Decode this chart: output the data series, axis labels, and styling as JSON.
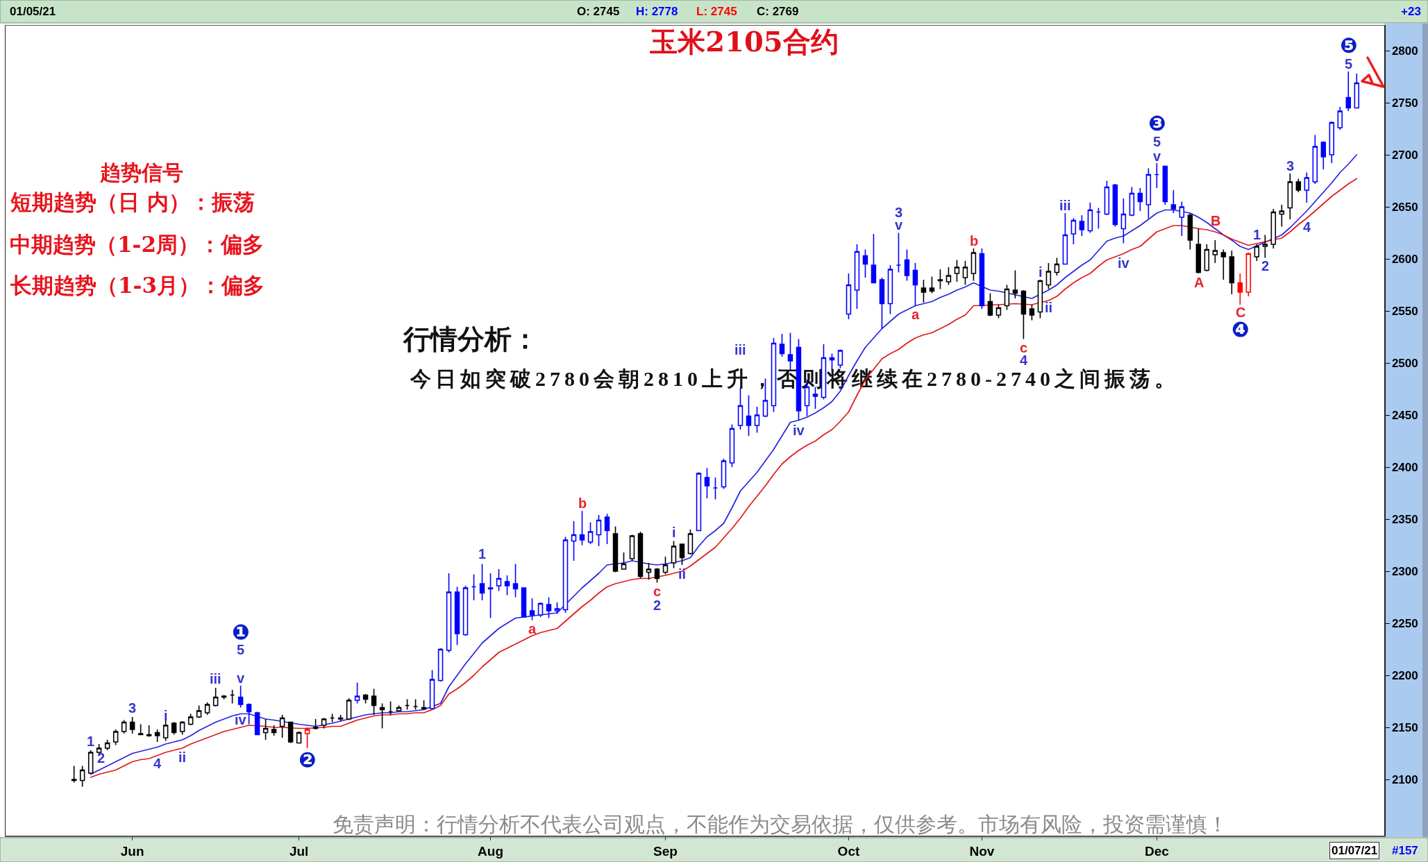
{
  "chart_data": {
    "type": "candlestick",
    "title": "玉米2105合约",
    "categories": [
      null,
      null,
      null,
      null,
      null,
      null,
      null,
      "Jun",
      null,
      null,
      null,
      null,
      null,
      null,
      null,
      null,
      null,
      null,
      null,
      null,
      null,
      null,
      null,
      null,
      null,
      null,
      null,
      "Jul",
      null,
      null,
      null,
      null,
      null,
      null,
      null,
      null,
      null,
      null,
      null,
      null,
      null,
      null,
      null,
      null,
      null,
      null,
      null,
      null,
      null,
      null,
      "Aug",
      null,
      null,
      null,
      null,
      null,
      null,
      null,
      null,
      null,
      null,
      null,
      null,
      null,
      null,
      null,
      null,
      null,
      null,
      null,
      null,
      "Sep",
      null,
      null,
      null,
      null,
      null,
      null,
      null,
      null,
      null,
      null,
      null,
      null,
      null,
      null,
      null,
      null,
      null,
      null,
      null,
      null,
      null,
      "Oct",
      null,
      null,
      null,
      null,
      null,
      null,
      null,
      null,
      null,
      null,
      null,
      null,
      null,
      null,
      null,
      "Nov",
      null,
      null,
      null,
      null,
      null,
      null,
      null,
      null,
      null,
      null,
      null,
      null,
      null,
      null,
      null,
      null,
      null,
      null,
      null,
      null,
      "Dec",
      null,
      null,
      null,
      null,
      null,
      null,
      null,
      null,
      null,
      null,
      null,
      null,
      null,
      null,
      null,
      null,
      null,
      null,
      null,
      null,
      null,
      null,
      null,
      null
    ],
    "ohlc": [
      [
        2100,
        2113,
        2097,
        2099
      ],
      [
        2099,
        2113,
        2093,
        2109
      ],
      [
        2106,
        2128,
        2105,
        2126
      ],
      [
        2126,
        2134,
        2123,
        2130
      ],
      [
        2130,
        2138,
        2128,
        2135
      ],
      [
        2136,
        2148,
        2133,
        2146
      ],
      [
        2146,
        2157,
        2144,
        2155
      ],
      [
        2155,
        2160,
        2144,
        2148
      ],
      [
        2144,
        2153,
        2143,
        2143
      ],
      [
        2143,
        2152,
        2141,
        2142
      ],
      [
        2145,
        2148,
        2136,
        2142
      ],
      [
        2140,
        2157,
        2137,
        2152
      ],
      [
        2154,
        2155,
        2143,
        2145
      ],
      [
        2146,
        2156,
        2143,
        2155
      ],
      [
        2153,
        2163,
        2152,
        2160
      ],
      [
        2160,
        2171,
        2159,
        2166
      ],
      [
        2164,
        2174,
        2162,
        2172
      ],
      [
        2171,
        2188,
        2170,
        2179
      ],
      [
        2179,
        2181,
        2177,
        2180
      ],
      [
        2181,
        2186,
        2173,
        2181
      ],
      [
        2179,
        2190,
        2169,
        2172
      ],
      [
        2172,
        2173,
        2153,
        2165
      ],
      [
        2164,
        2165,
        2143,
        2143
      ],
      [
        2145,
        2158,
        2138,
        2149
      ],
      [
        2148,
        2152,
        2142,
        2145
      ],
      [
        2151,
        2162,
        2140,
        2159
      ],
      [
        2155,
        2155,
        2135,
        2136
      ],
      [
        2135,
        2146,
        2135,
        2145
      ],
      [
        2144,
        2150,
        2130,
        2148
      ],
      [
        2150,
        2158,
        2148,
        2149
      ],
      [
        2152,
        2159,
        2149,
        2158
      ],
      [
        2159,
        2163,
        2155,
        2159
      ],
      [
        2159,
        2162,
        2156,
        2158
      ],
      [
        2158,
        2178,
        2157,
        2176
      ],
      [
        2176,
        2193,
        2173,
        2180
      ],
      [
        2181,
        2182,
        2173,
        2177
      ],
      [
        2180,
        2187,
        2162,
        2171
      ],
      [
        2169,
        2173,
        2149,
        2167
      ],
      [
        2165,
        2175,
        2162,
        2165
      ],
      [
        2166,
        2171,
        2165,
        2169
      ],
      [
        2171,
        2177,
        2167,
        2171
      ],
      [
        2170,
        2177,
        2167,
        2170
      ],
      [
        2169,
        2176,
        2167,
        2168
      ],
      [
        2168,
        2205,
        2168,
        2196
      ],
      [
        2195,
        2226,
        2194,
        2225
      ],
      [
        2224,
        2298,
        2222,
        2280
      ],
      [
        2280,
        2285,
        2229,
        2240
      ],
      [
        2239,
        2286,
        2238,
        2284
      ],
      [
        2285,
        2297,
        2272,
        2285
      ],
      [
        2288,
        2307,
        2272,
        2279
      ],
      [
        2283,
        2298,
        2255,
        2284
      ],
      [
        2286,
        2302,
        2281,
        2293
      ],
      [
        2290,
        2296,
        2277,
        2286
      ],
      [
        2288,
        2307,
        2275,
        2283
      ],
      [
        2284,
        2284,
        2256,
        2256
      ],
      [
        2262,
        2274,
        2253,
        2258
      ],
      [
        2258,
        2270,
        2256,
        2269
      ],
      [
        2268,
        2275,
        2255,
        2262
      ],
      [
        2262,
        2270,
        2259,
        2264
      ],
      [
        2263,
        2333,
        2260,
        2330
      ],
      [
        2329,
        2348,
        2310,
        2335
      ],
      [
        2335,
        2358,
        2325,
        2330
      ],
      [
        2328,
        2347,
        2326,
        2338
      ],
      [
        2335,
        2354,
        2324,
        2349
      ],
      [
        2352,
        2355,
        2326,
        2339
      ],
      [
        2336,
        2343,
        2299,
        2300
      ],
      [
        2302,
        2318,
        2302,
        2307
      ],
      [
        2312,
        2335,
        2310,
        2334
      ],
      [
        2336,
        2338,
        2293,
        2295
      ],
      [
        2299,
        2308,
        2292,
        2302
      ],
      [
        2302,
        2303,
        2289,
        2293
      ],
      [
        2299,
        2314,
        2297,
        2306
      ],
      [
        2308,
        2329,
        2303,
        2324
      ],
      [
        2326,
        2326,
        2306,
        2313
      ],
      [
        2317,
        2340,
        2316,
        2336
      ],
      [
        2339,
        2395,
        2339,
        2394
      ],
      [
        2390,
        2399,
        2370,
        2382
      ],
      [
        2380,
        2390,
        2369,
        2380
      ],
      [
        2381,
        2408,
        2379,
        2406
      ],
      [
        2404,
        2441,
        2400,
        2437
      ],
      [
        2440,
        2476,
        2436,
        2459
      ],
      [
        2449,
        2469,
        2430,
        2440
      ],
      [
        2440,
        2458,
        2433,
        2450
      ],
      [
        2449,
        2485,
        2448,
        2464
      ],
      [
        2459,
        2524,
        2453,
        2519
      ],
      [
        2518,
        2528,
        2506,
        2509
      ],
      [
        2508,
        2529,
        2493,
        2502
      ],
      [
        2515,
        2523,
        2445,
        2454
      ],
      [
        2459,
        2484,
        2449,
        2477
      ],
      [
        2470,
        2477,
        2456,
        2468
      ],
      [
        2467,
        2518,
        2465,
        2505
      ],
      [
        2505,
        2509,
        2493,
        2503
      ],
      [
        2498,
        2513,
        2495,
        2512
      ],
      [
        2547,
        2586,
        2542,
        2575
      ],
      [
        2570,
        2614,
        2552,
        2607
      ],
      [
        2603,
        2609,
        2582,
        2595
      ],
      [
        2594,
        2624,
        2577,
        2577
      ],
      [
        2580,
        2582,
        2533,
        2557
      ],
      [
        2557,
        2594,
        2547,
        2590
      ],
      [
        2594,
        2625,
        2587,
        2594
      ],
      [
        2599,
        2609,
        2579,
        2584
      ],
      [
        2589,
        2596,
        2555,
        2575
      ],
      [
        2572,
        2580,
        2558,
        2568
      ],
      [
        2572,
        2583,
        2567,
        2569
      ],
      [
        2580,
        2590,
        2571,
        2579
      ],
      [
        2578,
        2592,
        2575,
        2584
      ],
      [
        2586,
        2599,
        2578,
        2592
      ],
      [
        2582,
        2598,
        2575,
        2592
      ],
      [
        2586,
        2610,
        2579,
        2606
      ],
      [
        2605,
        2610,
        2552,
        2555
      ],
      [
        2559,
        2567,
        2545,
        2546
      ],
      [
        2546,
        2556,
        2543,
        2553
      ],
      [
        2555,
        2575,
        2551,
        2571
      ],
      [
        2570,
        2589,
        2562,
        2567
      ],
      [
        2569,
        2570,
        2523,
        2547
      ],
      [
        2552,
        2556,
        2541,
        2546
      ],
      [
        2549,
        2580,
        2543,
        2579
      ],
      [
        2575,
        2596,
        2571,
        2588
      ],
      [
        2587,
        2601,
        2584,
        2595
      ],
      [
        2595,
        2644,
        2595,
        2623
      ],
      [
        2624,
        2639,
        2614,
        2637
      ],
      [
        2636,
        2642,
        2622,
        2628
      ],
      [
        2627,
        2654,
        2625,
        2647
      ],
      [
        2645,
        2649,
        2629,
        2645
      ],
      [
        2643,
        2675,
        2642,
        2669
      ],
      [
        2671,
        2672,
        2631,
        2633
      ],
      [
        2629,
        2658,
        2615,
        2643
      ],
      [
        2642,
        2669,
        2641,
        2663
      ],
      [
        2663,
        2668,
        2646,
        2655
      ],
      [
        2652,
        2687,
        2639,
        2681
      ],
      [
        2681,
        2692,
        2668,
        2681
      ],
      [
        2689,
        2689,
        2652,
        2655
      ],
      [
        2652,
        2666,
        2644,
        2648
      ],
      [
        2640,
        2655,
        2622,
        2650
      ],
      [
        2642,
        2644,
        2609,
        2618
      ],
      [
        2614,
        2629,
        2586,
        2587
      ],
      [
        2589,
        2614,
        2588,
        2609
      ],
      [
        2604,
        2618,
        2596,
        2608
      ],
      [
        2606,
        2609,
        2580,
        2602
      ],
      [
        2602,
        2608,
        2566,
        2577
      ],
      [
        2577,
        2586,
        2556,
        2568
      ],
      [
        2568,
        2606,
        2564,
        2605
      ],
      [
        2602,
        2614,
        2598,
        2612
      ],
      [
        2612,
        2623,
        2601,
        2614
      ],
      [
        2614,
        2648,
        2610,
        2645
      ],
      [
        2643,
        2652,
        2631,
        2646
      ],
      [
        2649,
        2682,
        2638,
        2674
      ],
      [
        2674,
        2677,
        2664,
        2666
      ],
      [
        2666,
        2683,
        2654,
        2678
      ],
      [
        2674,
        2719,
        2672,
        2708
      ],
      [
        2712,
        2713,
        2686,
        2698
      ],
      [
        2700,
        2732,
        2692,
        2731
      ],
      [
        2726,
        2746,
        2724,
        2742
      ],
      [
        2755,
        2780,
        2742,
        2745
      ],
      [
        2745,
        2778,
        2745,
        2769
      ]
    ],
    "colors": [
      "#000000",
      "#000000",
      "#000000",
      "#000000",
      "#000000",
      "#000000",
      "#000000",
      "#000000",
      "#000000",
      "#000000",
      "#000000",
      "#000000",
      "#000000",
      "#000000",
      "#000000",
      "#000000",
      "#000000",
      "#000000",
      "#000000",
      "#000000",
      "#0000ff",
      "#0000ff",
      "#0000ff",
      "#000000",
      "#000000",
      "#000000",
      "#000000",
      "#000000",
      "#ff0000",
      "#000000",
      "#000000",
      "#000000",
      "#000000",
      "#000000",
      "#0000ff",
      "#000000",
      "#000000",
      "#000000",
      "#000000",
      "#000000",
      "#000000",
      "#000000",
      "#000000",
      "#0000ff",
      "#0000ff",
      "#0000ff",
      "#0000ff",
      "#0000ff",
      "#0000ff",
      "#0000ff",
      "#0000ff",
      "#0000ff",
      "#0000ff",
      "#0000ff",
      "#0000ff",
      "#0000ff",
      "#0000ff",
      "#0000ff",
      "#0000ff",
      "#0000ff",
      "#0000ff",
      "#0000ff",
      "#0000ff",
      "#0000ff",
      "#0000ff",
      "#000000",
      "#000000",
      "#000000",
      "#000000",
      "#000000",
      "#000000",
      "#000000",
      "#000000",
      "#000000",
      "#000000",
      "#0000ff",
      "#0000ff",
      "#0000ff",
      "#0000ff",
      "#0000ff",
      "#0000ff",
      "#0000ff",
      "#0000ff",
      "#0000ff",
      "#0000ff",
      "#0000ff",
      "#0000ff",
      "#0000ff",
      "#0000ff",
      "#0000ff",
      "#0000ff",
      "#0000ff",
      "#0000ff",
      "#0000ff",
      "#0000ff",
      "#0000ff",
      "#0000ff",
      "#0000ff",
      "#0000ff",
      "#0000ff",
      "#0000ff",
      "#0000ff",
      "#000000",
      "#000000",
      "#000000",
      "#000000",
      "#000000",
      "#000000",
      "#000000",
      "#0000ff",
      "#000000",
      "#000000",
      "#000000",
      "#000000",
      "#000000",
      "#000000",
      "#000000",
      "#000000",
      "#000000",
      "#0000ff",
      "#0000ff",
      "#0000ff",
      "#0000ff",
      "#0000ff",
      "#0000ff",
      "#0000ff",
      "#0000ff",
      "#0000ff",
      "#0000ff",
      "#0000ff",
      "#0000ff",
      "#0000ff",
      "#0000ff",
      "#0000ff",
      "#000000",
      "#000000",
      "#000000",
      "#000000",
      "#000000",
      "#000000",
      "#ff0000",
      "#ff0000",
      "#000000",
      "#000000",
      "#000000",
      "#000000",
      "#000000",
      "#000000",
      "#0000ff",
      "#0000ff",
      "#0000ff",
      "#0000ff",
      "#0000ff",
      "#0000ff",
      "#0000ff"
    ],
    "series": [
      {
        "type": "line",
        "color": "#2424e0",
        "values": [
          null,
          null,
          2105,
          2109,
          2113,
          2117,
          2121,
          2125,
          2127,
          2129,
          2131,
          2134,
          2136,
          2138,
          2142,
          2147,
          2151,
          2155,
          2158,
          2161,
          2163,
          2163,
          null,
          2158,
          2157,
          null,
          null,
          2153,
          2152,
          2151,
          null,
          2154,
          2156,
          null,
          2160,
          2162,
          2163,
          2164,
          2164,
          2165,
          2165,
          2166,
          2167,
          null,
          2173,
          2189,
          2200,
          2211,
          2221,
          2231,
          2238,
          2245,
          2250,
          2255,
          null,
          2257,
          null,
          2259,
          2260,
          null,
          2276,
          2284,
          2291,
          2298,
          2306,
          null,
          2308,
          2310,
          null,
          2307,
          2306,
          2307,
          null,
          2310,
          2313,
          2324,
          2333,
          2339,
          2346,
          2361,
          2377,
          2386,
          2395,
          2406,
          2417,
          2430,
          2443,
          2445,
          2448,
          2452,
          2457,
          2463,
          2473,
          2488,
          2502,
          2515,
          2524,
          2533,
          2540,
          2547,
          2551,
          2555,
          2557,
          2559,
          2563,
          2566,
          2570,
          2573,
          2577,
          null,
          2570,
          2569,
          null,
          null,
          null,
          2562,
          null,
          2570,
          2575,
          2582,
          2588,
          2594,
          2599,
          2608,
          2617,
          2620,
          2622,
          2627,
          2632,
          2638,
          2644,
          2647,
          2647,
          null,
          2644,
          2640,
          2635,
          2629,
          2623,
          2618,
          2612,
          2609,
          null,
          null,
          null,
          2623,
          2630,
          2638,
          2646,
          2655,
          2664,
          2673,
          2683,
          2691,
          2700
        ]
      },
      {
        "type": "line",
        "color": "#e01818",
        "values": [
          null,
          null,
          2102,
          2105,
          2107,
          2109,
          2113,
          2117,
          2119,
          2120,
          2123,
          2126,
          2128,
          2130,
          2134,
          2137,
          2140,
          2143,
          2146,
          2148,
          2150,
          2152,
          null,
          2151,
          2150,
          2150,
          null,
          2149,
          2149,
          null,
          2150,
          2151,
          2151,
          2154,
          2157,
          2159,
          2161,
          2162,
          2162,
          2163,
          2163,
          2164,
          2164,
          2167,
          2171,
          2182,
          2187,
          2193,
          2200,
          2208,
          2215,
          2222,
          2226,
          2230,
          2234,
          2238,
          2241,
          2243,
          2245,
          2252,
          2259,
          2266,
          2272,
          2279,
          2285,
          2288,
          2290,
          2292,
          2293,
          2293,
          null,
          2296,
          2298,
          2300,
          2305,
          2311,
          2317,
          2323,
          2332,
          2341,
          2351,
          2362,
          2372,
          2382,
          2393,
          2403,
          2410,
          2416,
          2421,
          2425,
          2431,
          2436,
          2444,
          2453,
          2469,
          2484,
          2494,
          2504,
          2509,
          2513,
          2519,
          2524,
          2527,
          2529,
          2533,
          2537,
          2542,
          2546,
          2555,
          null,
          null,
          2556,
          null,
          2557,
          null,
          2556,
          null,
          2560,
          2564,
          2571,
          2577,
          2582,
          2586,
          2593,
          2599,
          2602,
          2605,
          2609,
          2612,
          2619,
          2626,
          2629,
          2632,
          2632,
          null,
          2629,
          2628,
          2626,
          2623,
          2619,
          2616,
          2613,
          null,
          null,
          null,
          2620,
          2626,
          2633,
          2639,
          2646,
          2653,
          2660,
          2666,
          2672,
          2677
        ]
      }
    ],
    "ylim": [
      2046,
      2824
    ],
    "yticks": [
      2100,
      2150,
      2200,
      2250,
      2300,
      2350,
      2400,
      2450,
      2500,
      2550,
      2600,
      2650,
      2700,
      2750,
      2800
    ],
    "annotations": [
      "趋势信号",
      "短期趋势（日 内）：振荡",
      "中期趋势（1-2周）：偏多",
      "长期趋势（1-3月）：偏多",
      "行情分析：",
      "今日如突破2780会朝2810上升，否则将继续在2780-2740之间振荡。",
      "免责声明：行情分析不代表公司观点，不能作为交易依据，仅供参考。市场有风险，投资需谨慎！",
      "01/05/21",
      "O: 2745",
      "H: 2778",
      "L: 2745",
      "C: 2769",
      "+23",
      "01/07/21",
      "#157",
      "1",
      "2",
      "3",
      "4",
      "i",
      "ii",
      "iii",
      "iv",
      "v",
      "5",
      "❶",
      "❷",
      "1",
      "a",
      "b",
      "c",
      "2",
      "i",
      "ii",
      "iii",
      "iv",
      "3",
      "v",
      "a",
      "b",
      "c",
      "4",
      "i",
      "ii",
      "iii",
      "iv",
      "5",
      "v",
      "❸",
      "A",
      "B",
      "C",
      "❹",
      "1",
      "2",
      "3",
      "4",
      "5",
      "❺"
    ]
  }
}
